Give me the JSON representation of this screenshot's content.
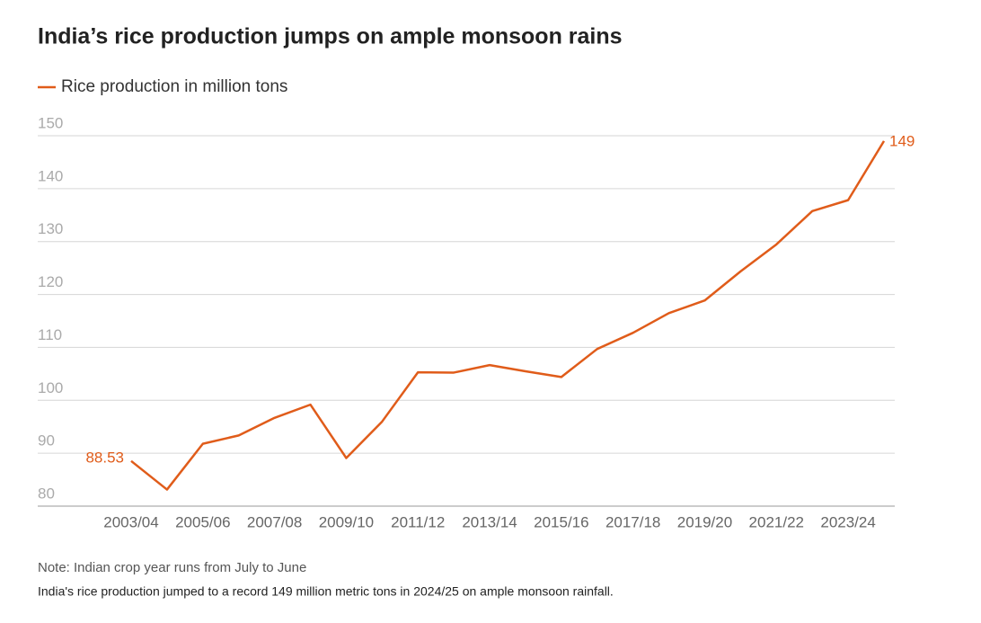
{
  "chart_data": {
    "type": "line",
    "title": "India’s rice production jumps on ample monsoon rains",
    "note": "Note: Indian crop year runs from July to June",
    "caption": "India's rice production jumped to a record 149 million metric tons in 2024/25 on ample monsoon rainfall.",
    "categories": [
      "2003/04",
      null,
      "2005/06",
      null,
      "2007/08",
      null,
      "2009/10",
      null,
      "2011/12",
      null,
      "2013/14",
      null,
      "2015/16",
      null,
      "2017/18",
      null,
      "2019/20",
      null,
      "2021/22",
      null,
      "2023/24",
      null
    ],
    "series": [
      {
        "name": "Rice production in million tons",
        "color": "#e05c1a",
        "values": [
          88.53,
          83.13,
          91.79,
          93.36,
          96.69,
          99.18,
          89.09,
          95.98,
          105.3,
          105.24,
          106.65,
          105.48,
          104.41,
          109.7,
          112.76,
          116.48,
          118.87,
          124.37,
          129.47,
          135.76,
          137.83,
          149
        ],
        "value_labels": [
          "88.53",
          null,
          null,
          null,
          null,
          null,
          null,
          null,
          null,
          null,
          null,
          null,
          null,
          null,
          null,
          null,
          null,
          null,
          null,
          null,
          null,
          "149"
        ]
      }
    ],
    "ylim": [
      80,
      150
    ],
    "yticks": [
      80,
      90,
      100,
      110,
      120,
      130,
      140,
      150
    ],
    "grid": true,
    "legend": "top-left"
  }
}
